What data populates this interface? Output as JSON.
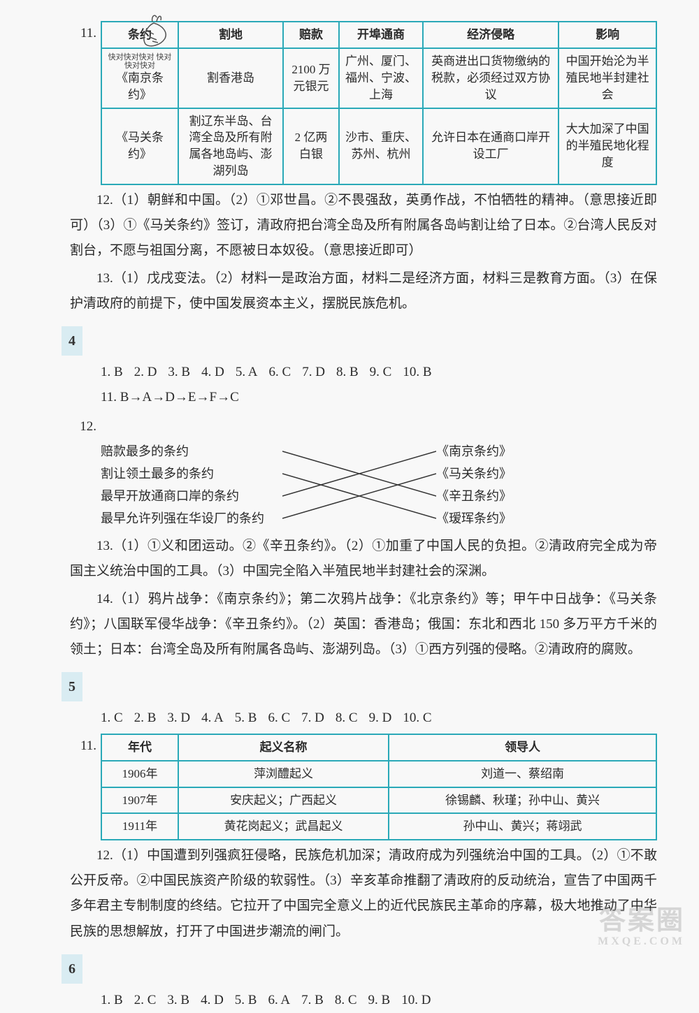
{
  "colors": {
    "tableBorder": "#2aa9b8",
    "badgeBg": "#d9ecf2",
    "text": "#2a2a2a"
  },
  "carrot": {
    "name": "carrot-doodle"
  },
  "table11": {
    "headers": [
      "条约",
      "割地",
      "赔款",
      "开埠通商",
      "经济侵略",
      "影响"
    ],
    "rows": [
      {
        "treaty_scribble": "快对快对快对\n快对快对快对",
        "treaty": "《南京条约》",
        "land": "割香港岛",
        "indemnity": "2100 万元银元",
        "ports": "广州、厦门、福州、宁波、上海",
        "econ": "英商进出口货物缴纳的税款，必须经过双方协议",
        "effect": "中国开始沦为半殖民地半封建社会"
      },
      {
        "treaty": "《马关条约》",
        "land": "割辽东半岛、台湾全岛及所有附属各地岛屿、澎湖列岛",
        "indemnity": "2 亿两白银",
        "ports": "沙市、重庆、苏州、杭州",
        "econ": "允许日本在通商口岸开设工厂",
        "effect": "大大加深了中国的半殖民地化程度"
      }
    ]
  },
  "q12": "12.（1）朝鲜和中国。（2）①邓世昌。②不畏强敌，英勇作战，不怕牺牲的精神。（意思接近即可）（3）①《马关条约》签订，清政府把台湾全岛及所有附属各岛屿割让给了日本。②台湾人民反对割台，不愿与祖国分离，不愿被日本奴役。（意思接近即可）",
  "q13": "13.（1）戊戌变法。（2）材料一是政治方面，材料二是经济方面，材料三是教育方面。（3）在保护清政府的前提下，使中国发展资本主义，摆脱民族危机。",
  "sec4": {
    "badge": "4",
    "mc": [
      {
        "n": "1",
        "a": "B"
      },
      {
        "n": "2",
        "a": "D"
      },
      {
        "n": "3",
        "a": "B"
      },
      {
        "n": "4",
        "a": "D"
      },
      {
        "n": "5",
        "a": "A"
      },
      {
        "n": "6",
        "a": "C"
      },
      {
        "n": "7",
        "a": "D"
      },
      {
        "n": "8",
        "a": "B"
      },
      {
        "n": "9",
        "a": "C"
      },
      {
        "n": "10",
        "a": "B"
      }
    ],
    "q11": "11. B→A→D→E→F→C",
    "q12_label": "12.",
    "match": {
      "left": [
        "赔款最多的条约",
        "割让领土最多的条约",
        "最早开放通商口岸的条约",
        "最早允许列强在华设厂的条约"
      ],
      "right": [
        "《南京条约》",
        "《马关条约》",
        "《辛丑条约》",
        "《瑷珲条约》"
      ],
      "edges": [
        [
          0,
          2
        ],
        [
          1,
          3
        ],
        [
          2,
          0
        ],
        [
          3,
          1
        ]
      ]
    },
    "q13": "13.（1）①义和团运动。②《辛丑条约》。（2）①加重了中国人民的负担。②清政府完全成为帝国主义统治中国的工具。（3）中国完全陷入半殖民地半封建社会的深渊。",
    "q14": "14.（1）鸦片战争：《南京条约》；第二次鸦片战争：《北京条约》等；甲午中日战争：《马关条约》；八国联军侵华战争：《辛丑条约》。（2）英国：香港岛；俄国：东北和西北 150 多万平方千米的领土；日本：台湾全岛及所有附属各岛屿、澎湖列岛。（3）①西方列强的侵略。②清政府的腐败。"
  },
  "sec5": {
    "badge": "5",
    "mc": [
      {
        "n": "1",
        "a": "C"
      },
      {
        "n": "2",
        "a": "B"
      },
      {
        "n": "3",
        "a": "D"
      },
      {
        "n": "4",
        "a": "A"
      },
      {
        "n": "5",
        "a": "B"
      },
      {
        "n": "6",
        "a": "C"
      },
      {
        "n": "7",
        "a": "D"
      },
      {
        "n": "8",
        "a": "C"
      },
      {
        "n": "9",
        "a": "D"
      },
      {
        "n": "10",
        "a": "C"
      }
    ],
    "q11_label": "11.",
    "table": {
      "headers": [
        "年代",
        "起义名称",
        "领导人"
      ],
      "rows": [
        [
          "1906年",
          "萍浏醴起义",
          "刘道一、蔡绍南"
        ],
        [
          "1907年",
          "安庆起义；广西起义",
          "徐锡麟、秋瑾；孙中山、黄兴"
        ],
        [
          "1911年",
          "黄花岗起义；武昌起义",
          "孙中山、黄兴；蒋翊武"
        ]
      ],
      "col_widths": [
        "110px",
        "auto",
        "auto"
      ]
    },
    "q12": "12.（1）中国遭到列强疯狂侵略，民族危机加深；清政府成为列强统治中国的工具。（2）①不敢公开反帝。②中国民族资产阶级的软弱性。（3）辛亥革命推翻了清政府的反动统治，宣告了中国两千多年君主专制制度的终结。它拉开了中国完全意义上的近代民族民主革命的序幕，极大地推动了中华民族的思想解放，打开了中国进步潮流的闸门。"
  },
  "sec6": {
    "badge": "6",
    "mc": [
      {
        "n": "1",
        "a": "B"
      },
      {
        "n": "2",
        "a": "C"
      },
      {
        "n": "3",
        "a": "B"
      },
      {
        "n": "4",
        "a": "D"
      },
      {
        "n": "5",
        "a": "B"
      },
      {
        "n": "6",
        "a": "A"
      },
      {
        "n": "7",
        "a": "B"
      },
      {
        "n": "8",
        "a": "C"
      },
      {
        "n": "9",
        "a": "B"
      },
      {
        "n": "10",
        "a": "D"
      }
    ]
  },
  "watermark": {
    "main": "答案圈",
    "sub": "MXQE.COM"
  }
}
